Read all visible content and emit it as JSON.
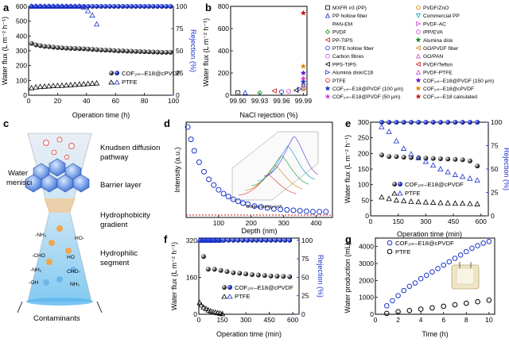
{
  "colors": {
    "blue": "#1a33cc",
    "black": "#111111",
    "red": "#cc1111"
  },
  "panels": [
    {
      "id": "a",
      "label": "a",
      "xlabel": "Operation time (h)",
      "ylabel": "Water flux (L m⁻² h⁻¹)",
      "y2label": "Rejection (%)",
      "xlim": [
        0,
        100
      ],
      "ylim": [
        0,
        600
      ],
      "y2lim": [
        0,
        100
      ],
      "xticks": [
        "0",
        "20",
        "40",
        "60",
        "80",
        "100"
      ],
      "yticks": [
        "0",
        "100",
        "200",
        "300",
        "400",
        "500",
        "600"
      ],
      "y2ticks": [
        "0",
        "25",
        "50",
        "75",
        "100"
      ],
      "legend": [
        "COF₂ₙₜ–E18@cPVDF",
        "PTFE"
      ]
    },
    {
      "id": "b",
      "label": "b",
      "xlabel": "NaCl rejection (%)",
      "ylabel": "Water flux (L m⁻² h⁻¹)",
      "xticks": [
        "99.90",
        "99.93",
        "99.96",
        "99.99"
      ],
      "yticks": [
        "0",
        "200",
        "400",
        "600",
        "800"
      ],
      "legend_left": [
        "MXFR #3 (PP)",
        "PP hollow fiber",
        "PAN-EM",
        "PVDF",
        "PP-TIPS",
        "PTFE hollow fiber",
        "Carbon fibres",
        "PPS-TIPS",
        "Alumina disk/C16",
        "PTFE",
        "COF₂ₙₜ–E18@PVDF (100 μm)",
        "COF₂ₙₜ–E18@PVDF (50 μm)"
      ],
      "legend_right": [
        "PVDF/ZnO",
        "Commercial PP",
        "PVDF-AC",
        "iPP/EVA",
        "Alumina disk",
        "GO/PVDF fiber",
        "GO/PAN",
        "PVDF/Teflon",
        "PVDF-PTFE",
        "COF₂ₙₜ–E18@PVDF (150 μm)",
        "COF₂ₙₜ–E18@cPVDF",
        "COF₂ₙₜ–E18 calculated"
      ]
    },
    {
      "id": "c",
      "label": "c",
      "labels": [
        "Water menisci",
        "Knudsen diffusion pathway",
        "Barrier layer",
        "Hydrophobicity gradient",
        "Hydrophilic segment",
        "Contaminants"
      ],
      "groups": [
        "-NH₂",
        "HO-",
        "-CHO",
        "HO",
        "-NH₂",
        "CHO-",
        "-OH",
        "NH₂"
      ]
    },
    {
      "id": "d",
      "label": "d",
      "xlabel": "Depth (nm)",
      "ylabel": "Intensity (a.u.)",
      "xticks": [
        "100",
        "200",
        "300",
        "400"
      ],
      "inset_xlabel": "Binding Energy (eV)",
      "inset_ylabel": "Intensity (a.u.)",
      "inset_zlabel": "Depth"
    },
    {
      "id": "e",
      "label": "e",
      "xlabel": "Operation time (min)",
      "ylabel": "Water flux (L m⁻² h⁻¹)",
      "y2label": "Rejection (%)",
      "xticks": [
        "0",
        "150",
        "300",
        "450",
        "600"
      ],
      "yticks": [
        "0",
        "50",
        "100",
        "150",
        "200",
        "250",
        "300"
      ],
      "y2ticks": [
        "0",
        "25",
        "50",
        "75",
        "100"
      ],
      "legend": [
        "COF₂ₙₜ–E18@cPVDF",
        "PTFE"
      ]
    },
    {
      "id": "f",
      "label": "f",
      "xlabel": "Operation time (min)",
      "ylabel": "Water flux (L m⁻² h⁻¹)",
      "y2label": "Rejection (%)",
      "xticks": [
        "0",
        "150",
        "300",
        "450",
        "600"
      ],
      "yticks": [
        "0",
        "160",
        "320"
      ],
      "y2ticks": [
        "0",
        "25",
        "50",
        "75",
        "100"
      ],
      "legend": [
        "COF₂ₙₜ–E18@cPVDF",
        "PTFE"
      ]
    },
    {
      "id": "g",
      "label": "g",
      "xlabel": "Time (h)",
      "ylabel": "Water production (mL)",
      "xticks": [
        "0",
        "2",
        "4",
        "6",
        "8",
        "10"
      ],
      "yticks": [
        "0",
        "1000",
        "2000",
        "3000",
        "4000"
      ],
      "legend": [
        "COF₂ₙₜ–E18@cPVDF",
        "PTFE"
      ]
    }
  ],
  "chart_data": [
    {
      "type": "scatter",
      "panel": "a",
      "x_axis": "Operation time (h)",
      "series": [
        {
          "name": "COF-E18@cPVDF flux",
          "axis": "left",
          "marker": "filled-circle",
          "x": [
            2,
            5,
            8,
            11,
            14,
            17,
            20,
            23,
            26,
            29,
            32,
            35,
            38,
            41,
            44,
            47,
            50,
            53,
            56,
            59,
            62,
            65,
            68,
            71,
            74,
            77,
            80,
            83,
            86,
            89,
            92,
            95,
            98
          ],
          "y": [
            350,
            340,
            335,
            330,
            328,
            325,
            322,
            320,
            318,
            317,
            316,
            315,
            314,
            312,
            310,
            308,
            306,
            305,
            304,
            302,
            300,
            300,
            298,
            297,
            296,
            295,
            294,
            293,
            292,
            291,
            290,
            290,
            290
          ]
        },
        {
          "name": "PTFE flux",
          "axis": "left",
          "marker": "open-triangle",
          "x": [
            2,
            5,
            8,
            11,
            14,
            17,
            20,
            23,
            26,
            29,
            32,
            35,
            38,
            41,
            44,
            47
          ],
          "y": [
            50,
            55,
            58,
            60,
            62,
            64,
            65,
            66,
            68,
            70,
            72,
            74,
            76,
            78,
            80,
            82
          ]
        },
        {
          "name": "COF-E18@cPVDF rejection",
          "axis": "right",
          "marker": "filled-circle-blue",
          "x": [
            2,
            5,
            8,
            11,
            14,
            17,
            20,
            23,
            26,
            29,
            32,
            35,
            38,
            41,
            44,
            47,
            50,
            53,
            56,
            59,
            62,
            65,
            68,
            71,
            74,
            77,
            80,
            83,
            86,
            89,
            92,
            95,
            98
          ],
          "y": [
            100,
            100,
            100,
            100,
            100,
            100,
            100,
            100,
            100,
            100,
            100,
            100,
            100,
            100,
            100,
            100,
            100,
            100,
            100,
            100,
            100,
            100,
            100,
            100,
            100,
            100,
            100,
            100,
            100,
            100,
            100,
            100,
            100
          ]
        },
        {
          "name": "PTFE rejection",
          "axis": "right",
          "marker": "open-triangle-blue",
          "x": [
            2,
            5,
            8,
            11,
            14,
            17,
            20,
            23,
            26,
            29,
            32,
            35,
            38,
            41,
            44,
            47
          ],
          "y": [
            100,
            100,
            100,
            100,
            100,
            100,
            100,
            100,
            100,
            100,
            100,
            100,
            99,
            95,
            90,
            80
          ]
        }
      ]
    },
    {
      "type": "scatter",
      "panel": "b",
      "points": [
        {
          "name": "MXFR #3 (PP)",
          "x": 99.9,
          "y": 20,
          "marker": "sq",
          "color": "#000000"
        },
        {
          "name": "PP hollow fiber",
          "x": 99.91,
          "y": 25,
          "marker": "tri",
          "color": "#1a33cc"
        },
        {
          "name": "PAN-EM",
          "x": 99.92,
          "y": 30,
          "marker": "none",
          "color": "#000000"
        },
        {
          "name": "PVDF",
          "x": 99.93,
          "y": 22,
          "marker": "dia",
          "color": "#0a8a0a"
        },
        {
          "name": "PP-TIPS",
          "x": 99.95,
          "y": 40,
          "marker": "tril",
          "color": "#cc1111"
        },
        {
          "name": "PTFE hollow fiber",
          "x": 99.96,
          "y": 30,
          "marker": "circ",
          "color": "#1a33cc"
        },
        {
          "name": "Carbon fibres",
          "x": 99.97,
          "y": 35,
          "marker": "circ",
          "color": "#cc44cc"
        },
        {
          "name": "PPS-TIPS",
          "x": 99.98,
          "y": 45,
          "marker": "tril",
          "color": "#000000"
        },
        {
          "name": "Alumina disk/C16",
          "x": 99.985,
          "y": 55,
          "marker": "trir",
          "color": "#1a33cc"
        },
        {
          "name": "PTFE",
          "x": 99.99,
          "y": 60,
          "marker": "circ",
          "color": "#cc1111"
        },
        {
          "name": "PVDF/ZnO",
          "x": 99.99,
          "y": 70,
          "marker": "circ",
          "color": "#dd7711"
        },
        {
          "name": "Commercial PP",
          "x": 99.99,
          "y": 80,
          "marker": "trid",
          "color": "#11aaaa"
        },
        {
          "name": "GO/PAN",
          "x": 99.99,
          "y": 95,
          "marker": "tri",
          "color": "#cc44cc"
        },
        {
          "name": "COF-E18@PVDF (100 μm)",
          "x": 99.99,
          "y": 120,
          "marker": "star",
          "color": "#1a33cc"
        },
        {
          "name": "COF-E18@PVDF (50 μm)",
          "x": 99.99,
          "y": 150,
          "marker": "star",
          "color": "#cc44cc"
        },
        {
          "name": "COF-E18@PVDF (150 μm)",
          "x": 99.99,
          "y": 200,
          "marker": "star",
          "color": "#6611cc"
        },
        {
          "name": "COF-E18@cPVDF",
          "x": 99.99,
          "y": 260,
          "marker": "star",
          "color": "#dd8800"
        },
        {
          "name": "COF-E18 calculated",
          "x": 99.99,
          "y": 740,
          "marker": "star",
          "color": "#cc1111"
        }
      ],
      "xlim": [
        99.89,
        99.995
      ],
      "ylim": [
        0,
        800
      ]
    },
    {
      "type": "scatter",
      "panel": "d",
      "series": [
        {
          "name": "depth profile",
          "marker": "open-circle",
          "x": [
            5,
            15,
            25,
            40,
            55,
            70,
            85,
            100,
            115,
            130,
            145,
            160,
            175,
            190,
            210,
            230,
            250,
            270,
            290,
            310,
            330,
            350,
            370,
            390,
            410,
            430
          ],
          "y": [
            0.95,
            0.82,
            0.7,
            0.58,
            0.48,
            0.4,
            0.34,
            0.29,
            0.25,
            0.22,
            0.19,
            0.17,
            0.15,
            0.14,
            0.12,
            0.11,
            0.1,
            0.09,
            0.085,
            0.08,
            0.075,
            0.07,
            0.065,
            0.06,
            0.06,
            0.06
          ]
        }
      ],
      "baseline": 0.03,
      "xlim": [
        0,
        450
      ],
      "ylim": [
        0,
        1
      ]
    },
    {
      "type": "scatter",
      "panel": "e",
      "series": [
        {
          "name": "COF-E18@cPVDF flux",
          "axis": "left",
          "marker": "filled-circle",
          "x": [
            60,
            100,
            140,
            180,
            220,
            260,
            300,
            340,
            380,
            420,
            460,
            500,
            540,
            580
          ],
          "y": [
            195,
            190,
            190,
            188,
            187,
            186,
            185,
            184,
            183,
            182,
            181,
            180,
            176,
            160
          ]
        },
        {
          "name": "PTFE flux",
          "axis": "left",
          "marker": "open-triangle",
          "x": [
            60,
            100,
            140,
            180,
            220,
            260,
            300,
            340,
            380,
            420,
            460,
            500,
            540,
            580
          ],
          "y": [
            60,
            55,
            50,
            48,
            46,
            45,
            44,
            43,
            42,
            41,
            40,
            40,
            39,
            38
          ]
        },
        {
          "name": "COF-E18@cPVDF rejection",
          "axis": "right",
          "marker": "filled-circle-blue",
          "x": [
            60,
            100,
            140,
            180,
            220,
            260,
            300,
            340,
            380,
            420,
            460,
            500,
            540,
            580
          ],
          "y": [
            100,
            100,
            100,
            100,
            100,
            100,
            100,
            100,
            100,
            100,
            100,
            100,
            100,
            100
          ]
        },
        {
          "name": "PTFE rejection",
          "axis": "right",
          "marker": "open-triangle-blue",
          "x": [
            60,
            100,
            140,
            180,
            220,
            260,
            300,
            340,
            380,
            420,
            460,
            500,
            540,
            580
          ],
          "y": [
            95,
            90,
            80,
            72,
            66,
            62,
            58,
            54,
            50,
            47,
            44,
            42,
            40,
            38
          ]
        }
      ]
    },
    {
      "type": "scatter",
      "panel": "f",
      "series": [
        {
          "name": "COF-E18@cPVDF flux",
          "axis": "left",
          "marker": "filled-circle",
          "x": [
            30,
            60,
            100,
            140,
            180,
            220,
            260,
            300,
            340,
            380,
            420,
            460,
            500,
            540,
            580
          ],
          "y": [
            250,
            195,
            195,
            190,
            185,
            180,
            178,
            175,
            172,
            170,
            168,
            166,
            165,
            164,
            163
          ]
        },
        {
          "name": "PTFE flux",
          "axis": "left",
          "marker": "open-triangle",
          "x": [
            5,
            15,
            30,
            45,
            60,
            75,
            90,
            105,
            120,
            135,
            150
          ],
          "y": [
            50,
            40,
            30,
            24,
            18,
            14,
            10,
            8,
            6,
            4,
            2
          ]
        },
        {
          "name": "COF-E18@cPVDF rejection",
          "axis": "right",
          "marker": "filled-circle-blue",
          "x": [
            10,
            40,
            70,
            100,
            130,
            160,
            190,
            220,
            250,
            280,
            310,
            340,
            370,
            400,
            430,
            460,
            490,
            520,
            550,
            580
          ],
          "y": [
            100,
            100,
            100,
            100,
            100,
            100,
            100,
            100,
            100,
            100,
            100,
            100,
            100,
            100,
            100,
            100,
            100,
            100,
            100,
            100
          ]
        },
        {
          "name": "PTFE rejection",
          "axis": "right",
          "marker": "open-triangle-blue",
          "x": [
            5,
            15,
            25,
            35,
            45,
            55,
            65,
            75,
            85,
            95,
            105,
            115,
            125,
            135
          ],
          "y": [
            100,
            100,
            100,
            100,
            100,
            100,
            100,
            100,
            100,
            100,
            100,
            100,
            100,
            100
          ]
        }
      ]
    },
    {
      "type": "scatter",
      "panel": "g",
      "series": [
        {
          "name": "COF-E18@cPVDF",
          "marker": "open-circle-blue",
          "x": [
            1,
            1.5,
            2,
            2.5,
            3,
            3.5,
            4,
            4.5,
            5,
            5.5,
            6,
            6.5,
            7,
            7.5,
            8,
            8.5,
            9,
            9.5,
            10
          ],
          "y": [
            500,
            800,
            1100,
            1400,
            1650,
            1850,
            2100,
            2300,
            2500,
            2700,
            2900,
            3100,
            3300,
            3500,
            3700,
            3900,
            4050,
            4200,
            4300
          ]
        },
        {
          "name": "PTFE",
          "marker": "open-circle-black",
          "x": [
            1,
            2,
            3,
            4,
            5,
            6,
            7,
            8,
            9,
            10
          ],
          "y": [
            50,
            150,
            220,
            300,
            380,
            470,
            560,
            650,
            740,
            830
          ]
        }
      ],
      "xlim": [
        0,
        10.5
      ],
      "ylim": [
        0,
        4500
      ]
    }
  ]
}
